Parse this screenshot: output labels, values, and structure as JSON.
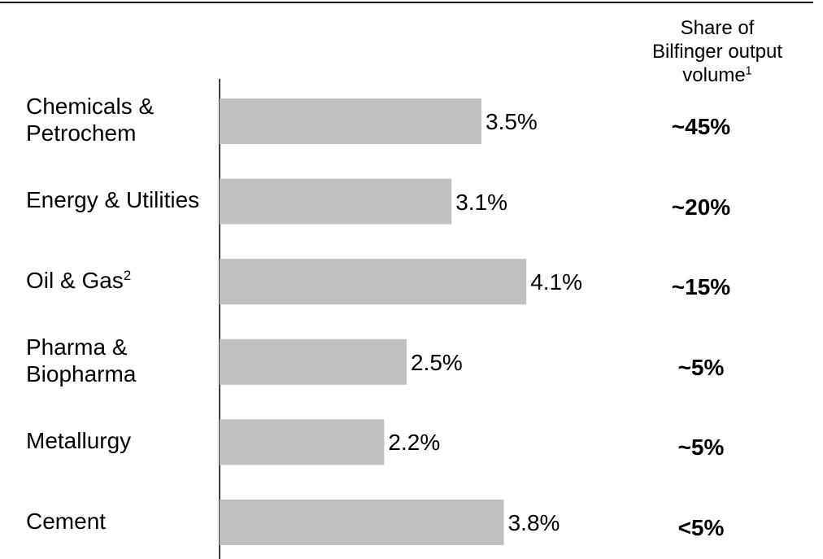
{
  "chart_data": {
    "type": "bar",
    "orientation": "horizontal",
    "categories": [
      "Chemicals & Petrochem",
      "Energy & Utilities",
      "Oil & Gas",
      "Pharma & Biopharma",
      "Metallurgy",
      "Cement"
    ],
    "category_superscripts": [
      null,
      null,
      "2",
      null,
      null,
      null
    ],
    "values": [
      3.5,
      3.1,
      4.1,
      2.5,
      2.2,
      3.8
    ],
    "value_labels": [
      "3.5%",
      "3.1%",
      "4.1%",
      "2.5%",
      "2.2%",
      "3.8%"
    ],
    "color": "#c0c0c0",
    "xlim": [
      0,
      8
    ],
    "column_header": {
      "lines": [
        "Share of",
        "Bilfinger output",
        "volume"
      ],
      "superscript": "1"
    },
    "share_labels": [
      "~45%",
      "~20%",
      "~15%",
      "~5%",
      "~5%",
      "<5%"
    ]
  }
}
